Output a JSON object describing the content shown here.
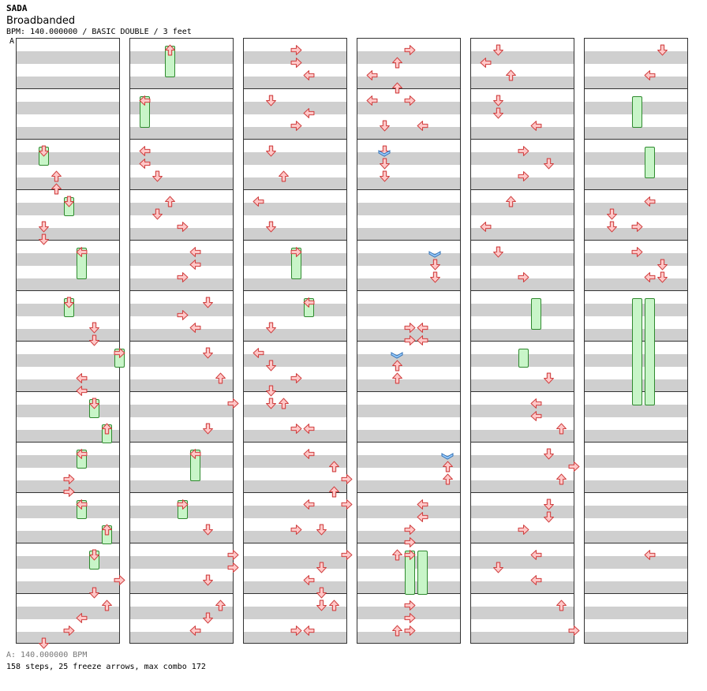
{
  "header": {
    "artist": "SADA",
    "title": "Broadbanded",
    "meta": "BPM: 140.000000 / BASIC DOUBLE / 3 feet",
    "bpm_marker": "A"
  },
  "footer": {
    "bpm_legend": "A: 140.000000 BPM",
    "stats": "158 steps, 25 freeze arrows, max combo 172"
  },
  "colors": {
    "note_fill": "#ffc8c8",
    "note_stroke": "#d04040",
    "shock_fill": "#9fd0ff",
    "freeze_fill": "#c8f5c8",
    "freeze_stroke": "#2f8a2f",
    "stripe_gray": "#cfcfcf",
    "bpm_line": "#3a7bd5"
  },
  "chart": {
    "columns": 6,
    "measures_per_column": 12,
    "lanes": [
      "left",
      "down",
      "up",
      "right",
      "left",
      "down",
      "up",
      "right"
    ]
  }
}
